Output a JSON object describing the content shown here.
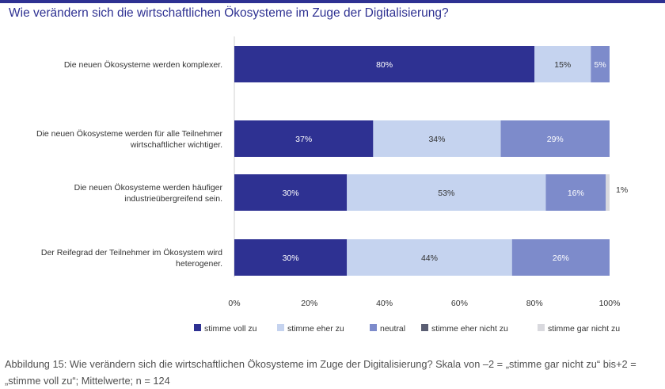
{
  "title": "Wie verändern sich die wirtschaftlichen Ökosysteme im Zuge der Digitalisierung?",
  "caption": "Abbildung 15: Wie verändern sich die wirtschaftlichen Ökosysteme im Zuge der Digitalisierung? Skala von –2 = „stimme gar nicht zu“ bis+2 = „stimme voll zu“; Mittelwerte; n = 124",
  "chart_data": {
    "type": "bar",
    "orientation": "horizontal",
    "stacked": true,
    "categories": [
      [
        "Die neuen Ökosysteme  werden komplexer."
      ],
      [
        "Die neuen Ökosysteme  werden für alle Teilnehmer",
        "wirtschaftlicher wichtiger."
      ],
      [
        "Die neuen Ökosysteme  werden häufiger",
        "industrieübergreifend sein."
      ],
      [
        "Der Reifegrad der Teilnehmer  im Ökosystem  wird",
        "heterogener."
      ]
    ],
    "series": [
      {
        "name": "stimme voll zu",
        "color": "#2e3192",
        "values": [
          80,
          37,
          30,
          30
        ],
        "labels": [
          "80%",
          "37%",
          "30%",
          "30%"
        ]
      },
      {
        "name": "stimme eher zu",
        "color": "#c5d3ef",
        "values": [
          15,
          34,
          53,
          44
        ],
        "labels": [
          "15%",
          "34%",
          "53%",
          "44%"
        ]
      },
      {
        "name": "neutral",
        "color": "#7d8bcb",
        "values": [
          5,
          29,
          16,
          26
        ],
        "labels": [
          "5%",
          "29%",
          "16%",
          "26%"
        ]
      },
      {
        "name": "stimme eher nicht zu",
        "color": "#5b5e73",
        "values": [
          0,
          0,
          0,
          0
        ],
        "labels": [
          "",
          "",
          "",
          ""
        ]
      },
      {
        "name": "stimme gar nicht zu",
        "color": "#d9d9de",
        "values": [
          0,
          0,
          1,
          0
        ],
        "labels": [
          "",
          "",
          "1%",
          ""
        ]
      }
    ],
    "xlim": [
      0,
      100
    ],
    "ticks": [
      "0%",
      "20%",
      "40%",
      "60%",
      "80%",
      "100%"
    ],
    "grid": false,
    "legend_position": "bottom"
  }
}
